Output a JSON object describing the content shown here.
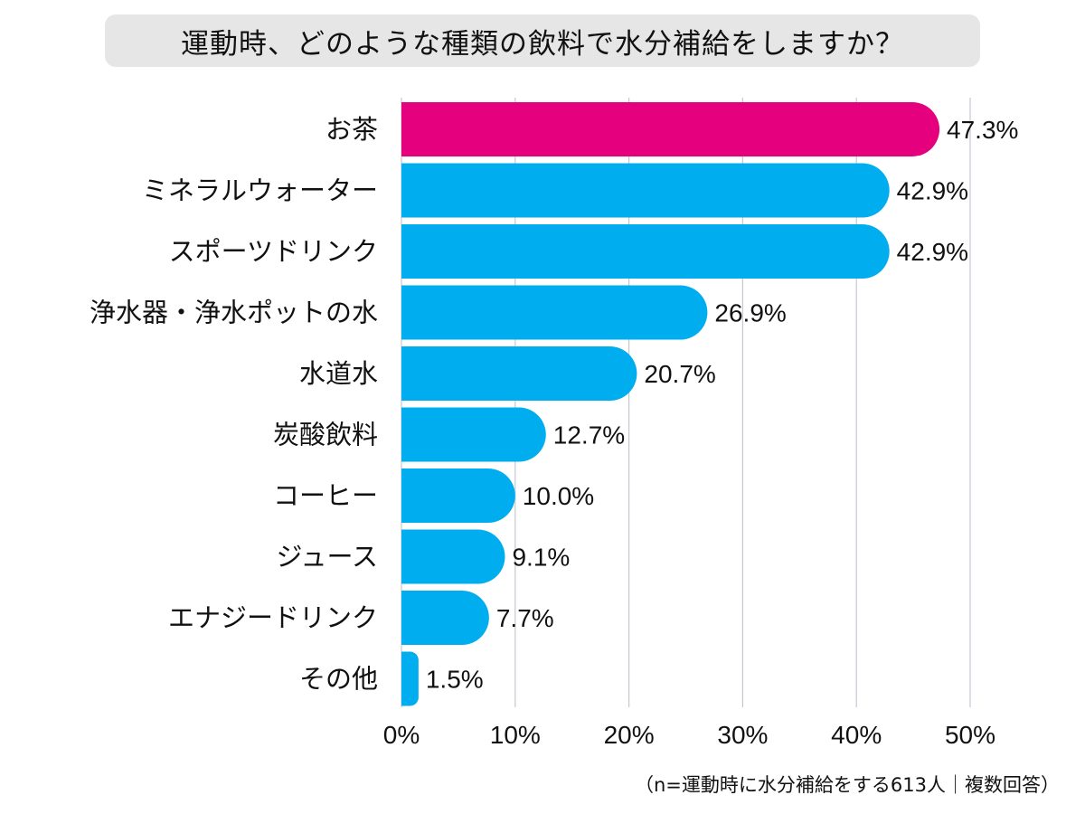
{
  "title": "運動時、どのような種類の飲料で水分補給をしますか？",
  "footnote": "（n=運動時に水分補給をする613人｜複数回答）",
  "colors": {
    "highlight": "#e5007e",
    "bar": "#00aeef",
    "grid": "#c4c8d0",
    "title_bg": "#e6e6e6"
  },
  "chart_data": {
    "type": "bar",
    "orientation": "horizontal",
    "title": "運動時、どのような種類の飲料で水分補給をしますか？",
    "categories": [
      "お茶",
      "ミネラルウォーター",
      "スポーツドリンク",
      "浄水器・浄水ポットの水",
      "水道水",
      "炭酸飲料",
      "コーヒー",
      "ジュース",
      "エナジードリンク",
      "その他"
    ],
    "values": [
      47.3,
      42.9,
      42.9,
      26.9,
      20.7,
      12.7,
      10.0,
      9.1,
      7.7,
      1.5
    ],
    "value_labels": [
      "47.3%",
      "42.9%",
      "42.9%",
      "26.9%",
      "20.7%",
      "12.7%",
      "10.0%",
      "9.1%",
      "7.7%",
      "1.5%"
    ],
    "highlight_index": 0,
    "xlim": [
      0,
      50
    ],
    "xticks": [
      0,
      10,
      20,
      30,
      40,
      50
    ],
    "xtick_labels": [
      "0%",
      "10%",
      "20%",
      "30%",
      "40%",
      "50%"
    ],
    "grid": true
  }
}
